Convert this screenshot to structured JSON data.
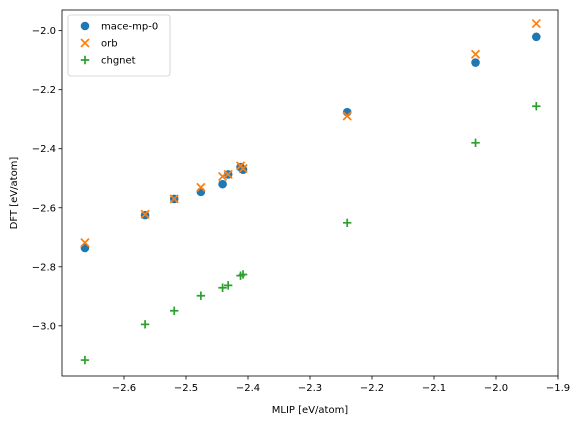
{
  "chart_data": {
    "type": "scatter",
    "title": "",
    "xlabel": "MLIP [eV/atom]",
    "ylabel": "DFT [eV/atom]",
    "xlim": [
      -2.7,
      -1.9
    ],
    "ylim": [
      -3.17,
      -1.93
    ],
    "xticks": [
      -2.6,
      -2.5,
      -2.4,
      -2.3,
      -2.2,
      -2.1,
      -2.0,
      -1.9
    ],
    "yticks": [
      -3.0,
      -2.8,
      -2.6,
      -2.4,
      -2.2,
      -2.0
    ],
    "xtick_labels": [
      "−2.6",
      "−2.5",
      "−2.4",
      "−2.3",
      "−2.2",
      "−2.1",
      "−2.0",
      "−1.9"
    ],
    "ytick_labels": [
      "−3.0",
      "−2.8",
      "−2.6",
      "−2.4",
      "−2.2",
      "−2.0"
    ],
    "grid": false,
    "legend_position": "top-left",
    "series": [
      {
        "name": "mace-mp-0",
        "marker": "circle",
        "color": "#1f77b4",
        "x": [
          -2.663,
          -2.566,
          -2.519,
          -2.476,
          -2.441,
          -2.432,
          -2.412,
          -2.408,
          -2.24,
          -2.033,
          -1.935
        ],
        "y": [
          -2.736,
          -2.625,
          -2.57,
          -2.546,
          -2.52,
          -2.487,
          -2.462,
          -2.471,
          -2.276,
          -2.108,
          -2.021
        ]
      },
      {
        "name": "orb",
        "marker": "x",
        "color": "#ff7f0e",
        "x": [
          -2.663,
          -2.566,
          -2.519,
          -2.476,
          -2.441,
          -2.432,
          -2.412,
          -2.408,
          -2.24,
          -2.033,
          -1.935
        ],
        "y": [
          -2.718,
          -2.622,
          -2.57,
          -2.531,
          -2.494,
          -2.487,
          -2.458,
          -2.467,
          -2.289,
          -2.08,
          -1.976
        ]
      },
      {
        "name": "chgnet",
        "marker": "plus",
        "color": "#2ca02c",
        "x": [
          -2.663,
          -2.566,
          -2.519,
          -2.476,
          -2.441,
          -2.432,
          -2.412,
          -2.408,
          -2.24,
          -2.033,
          -1.935
        ],
        "y": [
          -3.116,
          -2.995,
          -2.949,
          -2.898,
          -2.871,
          -2.863,
          -2.83,
          -2.826,
          -2.651,
          -2.38,
          -2.256
        ]
      }
    ]
  }
}
